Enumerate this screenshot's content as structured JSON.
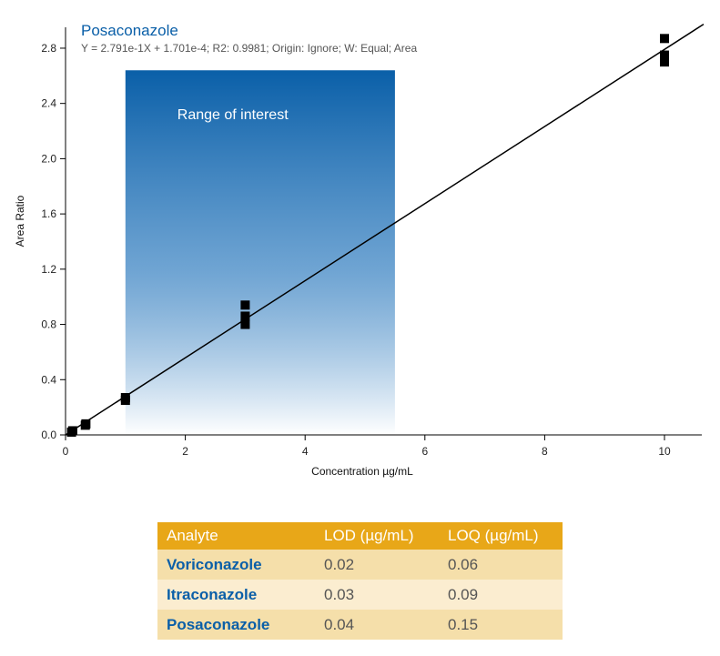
{
  "chart_data": {
    "type": "scatter",
    "title": "Posaconazole",
    "subtitle": "Y = 2.791e-1X + 1.701e-4; R2: 0.9981; Origin: Ignore; W: Equal; Area",
    "xlabel": "Concentration µg/mL",
    "ylabel": "Area Ratio",
    "xlim": [
      0,
      10.6
    ],
    "ylim": [
      0,
      2.95
    ],
    "x_ticks": [
      0,
      2,
      4,
      6,
      8,
      10
    ],
    "y_ticks": [
      0.0,
      0.4,
      0.8,
      1.2,
      1.6,
      2.0,
      2.4,
      2.8
    ],
    "x_tick_labels": [
      "0",
      "2",
      "4",
      "6",
      "8",
      "10"
    ],
    "y_tick_labels": [
      "0.0",
      "0.4",
      "0.8",
      "1.2",
      "1.6",
      "2.0",
      "2.4",
      "2.8"
    ],
    "points": [
      {
        "x": 0.1,
        "y": 0.02
      },
      {
        "x": 0.12,
        "y": 0.03
      },
      {
        "x": 0.33,
        "y": 0.07
      },
      {
        "x": 0.34,
        "y": 0.08
      },
      {
        "x": 1.0,
        "y": 0.25
      },
      {
        "x": 1.0,
        "y": 0.27
      },
      {
        "x": 3.0,
        "y": 0.8
      },
      {
        "x": 3.0,
        "y": 0.86
      },
      {
        "x": 3.0,
        "y": 0.94
      },
      {
        "x": 10.0,
        "y": 2.7
      },
      {
        "x": 10.0,
        "y": 2.75
      },
      {
        "x": 10.0,
        "y": 2.87
      }
    ],
    "fit_line": {
      "slope": 0.2791,
      "intercept": 0.0001701
    },
    "highlight": {
      "label": "Range of interest",
      "x_range": [
        1.0,
        5.5
      ],
      "y_top": 2.64,
      "color": "#0a5fa8"
    },
    "grid": false
  },
  "table": {
    "columns": [
      "Analyte",
      "LOD (µg/mL)",
      "LOQ (µg/mL)"
    ],
    "rows": [
      [
        "Voriconazole",
        "0.02",
        "0.06"
      ],
      [
        "Itraconazole",
        "0.03",
        "0.09"
      ],
      [
        "Posaconazole",
        "0.04",
        "0.15"
      ]
    ]
  }
}
